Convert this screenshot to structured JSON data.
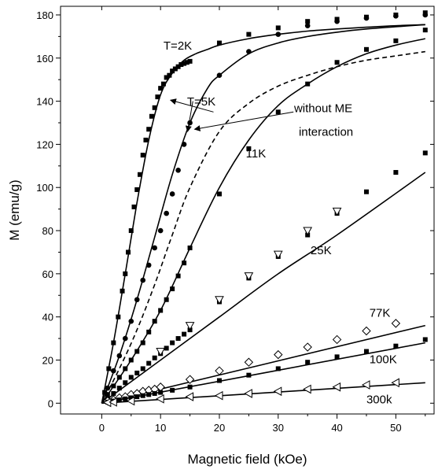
{
  "chart_data": {
    "type": "scatter",
    "title": "",
    "xlabel": "Magnetic field (kOe)",
    "ylabel": "M  (emu/g)",
    "xlim": [
      -7,
      56.5
    ],
    "ylim": [
      -5,
      184
    ],
    "xticks": [
      0,
      10,
      20,
      30,
      40,
      50,
      60
    ],
    "yticks": [
      0,
      20,
      40,
      60,
      80,
      100,
      120,
      140,
      160,
      180
    ],
    "grid": false,
    "legend": "none",
    "curves": [
      {
        "id": "fit-2K",
        "style": "solid",
        "x": [
          0,
          2,
          4,
          6,
          8,
          10,
          12,
          14,
          16,
          18,
          20,
          25,
          30,
          35,
          40,
          45,
          50,
          55
        ],
        "y": [
          0,
          28,
          60,
          93,
          122,
          143,
          153,
          159,
          162,
          164,
          166,
          169,
          171,
          172.5,
          173.5,
          174.3,
          175,
          175.5
        ]
      },
      {
        "id": "fit-5K",
        "style": "solid",
        "x": [
          0,
          3,
          6,
          9,
          12,
          15,
          18,
          20,
          25,
          30,
          35,
          40,
          45,
          50,
          55
        ],
        "y": [
          0,
          22,
          48,
          77,
          106,
          130,
          146,
          152,
          162,
          167,
          170,
          172,
          173.5,
          174.5,
          175.5
        ]
      },
      {
        "id": "fit-11K",
        "style": "solid",
        "x": [
          0,
          5,
          10,
          15,
          20,
          25,
          30,
          35,
          40,
          45,
          50,
          55
        ],
        "y": [
          0,
          20,
          43,
          72,
          100,
          122,
          138,
          148,
          156,
          162,
          166,
          169
        ]
      },
      {
        "id": "fit-25K",
        "style": "solid",
        "x": [
          0,
          10,
          20,
          30,
          40,
          55
        ],
        "y": [
          0,
          20,
          40,
          60,
          78,
          107
        ]
      },
      {
        "id": "fit-77K",
        "style": "solid",
        "x": [
          0,
          55
        ],
        "y": [
          0,
          36
        ]
      },
      {
        "id": "fit-100K",
        "style": "solid",
        "x": [
          0,
          55
        ],
        "y": [
          0,
          28
        ]
      },
      {
        "id": "fit-300K",
        "style": "solid",
        "x": [
          0,
          55
        ],
        "y": [
          0,
          9.5
        ]
      },
      {
        "id": "no-ME",
        "style": "dashed",
        "x": [
          0,
          3,
          6,
          9,
          12,
          15,
          20,
          25,
          30,
          35,
          40,
          45,
          50,
          55
        ],
        "y": [
          0,
          16,
          34,
          55,
          78,
          100,
          126,
          139,
          147,
          152,
          156,
          159,
          161,
          163
        ]
      }
    ],
    "series": [
      {
        "id": "2K",
        "marker": "square",
        "x": [
          0.5,
          1.2,
          2,
          2.8,
          3.5,
          4,
          4.5,
          5,
          5.5,
          6,
          6.5,
          7,
          7.5,
          8,
          8.5,
          9,
          9.5,
          10,
          10.5,
          11,
          11.5,
          12,
          12.5,
          13,
          13.5,
          14,
          14.5,
          15,
          20,
          25,
          30,
          35,
          40,
          45,
          50,
          55
        ],
        "y": [
          5,
          16,
          28,
          40,
          52,
          60,
          70,
          80,
          91,
          99,
          106,
          115,
          122,
          127,
          133,
          137,
          142,
          146,
          148,
          151,
          152,
          154,
          155,
          156,
          157,
          157.5,
          158,
          158.5,
          167,
          171,
          174,
          177,
          178,
          179,
          180,
          181
        ]
      },
      {
        "id": "5K",
        "marker": "circle",
        "x": [
          1,
          2,
          3,
          4,
          5,
          6,
          7,
          8,
          9,
          10,
          11,
          12,
          13,
          14,
          15,
          20,
          25,
          30,
          35,
          40,
          45,
          50,
          55
        ],
        "y": [
          7,
          15,
          22,
          30,
          38,
          48,
          57,
          64,
          72,
          80,
          88,
          97,
          108,
          120,
          130,
          152,
          163,
          171,
          175,
          177,
          178.5,
          179.5,
          180
        ]
      },
      {
        "id": "11K",
        "marker": "square",
        "x": [
          1,
          2,
          3,
          4,
          5,
          6,
          7,
          8,
          9,
          10,
          11,
          12,
          13,
          14,
          15,
          20,
          25,
          30,
          35,
          40,
          45,
          50,
          55
        ],
        "y": [
          4,
          8,
          12,
          16,
          20,
          24,
          28,
          33,
          38,
          43,
          48,
          53,
          59,
          65,
          72,
          97,
          118,
          135,
          148,
          158,
          164,
          168,
          173
        ]
      },
      {
        "id": "25K",
        "marker": "square",
        "x": [
          1,
          2,
          3,
          4,
          5,
          6,
          7,
          8,
          9,
          10,
          11,
          12,
          13,
          14,
          15,
          20,
          25,
          30,
          35,
          40,
          45,
          50,
          55
        ],
        "y": [
          2,
          4.5,
          7,
          9.5,
          12,
          14,
          16,
          18.5,
          21,
          23,
          25.5,
          28,
          30,
          32,
          34,
          47,
          58,
          68,
          78,
          88,
          98,
          107,
          116
        ]
      },
      {
        "id": "25K-open",
        "marker": "triangle-down",
        "x": [
          10,
          15,
          20,
          25,
          30,
          35,
          40
        ],
        "y": [
          24,
          36,
          48,
          59,
          69,
          80,
          89
        ]
      },
      {
        "id": "77K",
        "marker": "diamond",
        "x": [
          1,
          2,
          3,
          4,
          5,
          6,
          7,
          8,
          9,
          10,
          15,
          20,
          25,
          30,
          35,
          40,
          45,
          50
        ],
        "y": [
          1,
          1.5,
          2.5,
          3,
          4,
          4.5,
          5.5,
          6,
          6.5,
          7.5,
          11,
          15,
          19,
          22.5,
          26,
          29.5,
          33.5,
          37
        ]
      },
      {
        "id": "100K",
        "marker": "square",
        "x": [
          1,
          2,
          3,
          4,
          5,
          6,
          7,
          8,
          9,
          10,
          12,
          15,
          20,
          25,
          30,
          35,
          40,
          45,
          50,
          55
        ],
        "y": [
          0.5,
          1,
          1.5,
          2,
          2.5,
          3,
          3.5,
          4,
          4.5,
          5,
          6,
          7.5,
          10.5,
          13,
          16,
          19,
          21.5,
          24,
          26.5,
          29.5
        ]
      },
      {
        "id": "300K",
        "marker": "triangle-left",
        "x": [
          1,
          2,
          5,
          10,
          15,
          20,
          25,
          30,
          35,
          40,
          45,
          50
        ],
        "y": [
          0.3,
          0.5,
          1,
          2,
          3,
          3.5,
          4.5,
          5.5,
          6.5,
          7.5,
          8.5,
          9.5
        ]
      }
    ],
    "annotations": [
      {
        "text": "T=2K",
        "x": 10.5,
        "y": 164
      },
      {
        "text": "T=5K",
        "x": 14.5,
        "y": 138
      },
      {
        "text": "without ME",
        "x": 32.7,
        "y": 135
      },
      {
        "text": "interaction",
        "x": 33.5,
        "y": 124
      },
      {
        "text": "11K",
        "x": 24.5,
        "y": 114
      },
      {
        "text": "25K",
        "x": 35.5,
        "y": 69
      },
      {
        "text": "77K",
        "x": 45.5,
        "y": 40
      },
      {
        "text": "100K",
        "x": 45.5,
        "y": 18.5
      },
      {
        "text": "300k",
        "x": 45,
        "y": 0
      }
    ],
    "arrows": [
      {
        "from": [
          19,
          135
        ],
        "to": [
          11.7,
          140.5
        ]
      },
      {
        "from": [
          15.5,
          140
        ],
        "to": [
          14.6,
          126
        ]
      },
      {
        "from": [
          32.6,
          135
        ],
        "to": [
          15.8,
          127
        ]
      }
    ]
  }
}
